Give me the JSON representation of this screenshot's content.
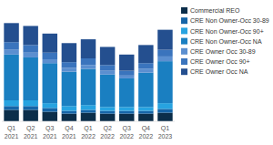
{
  "chart_data": {
    "type": "bar",
    "stacked": true,
    "legend": "right",
    "tick_labels": "x",
    "grid": false,
    "categories": [
      "Q1 2021",
      "Q2 2021",
      "Q3 2021",
      "Q4 2021",
      "Q1 2022",
      "Q2 2022",
      "Q3 2022",
      "Q4 2022",
      "Q1 2023"
    ],
    "ylim": [
      0,
      110
    ],
    "series": [
      {
        "name": "Commercial REO",
        "color": "#0b2e4a",
        "values": [
          12,
          12,
          10,
          8,
          9,
          8,
          8,
          8,
          9
        ]
      },
      {
        "name": "CRE Non Owner-Occ 30-89",
        "color": "#1565a8",
        "values": [
          4,
          4,
          4,
          3,
          3,
          3,
          3,
          3,
          4
        ]
      },
      {
        "name": "CRE Non Owner-Occ 90+",
        "color": "#27a3e0",
        "values": [
          6,
          6,
          5,
          5,
          5,
          4,
          4,
          4,
          6
        ]
      },
      {
        "name": "CRE Non Owner-Occ NA",
        "color": "#1a7fc1",
        "values": [
          48,
          45,
          42,
          36,
          38,
          34,
          30,
          36,
          44
        ]
      },
      {
        "name": "CRE Owner Occ 30-89",
        "color": "#5b8fd0",
        "values": [
          5,
          5,
          4,
          4,
          4,
          4,
          3,
          4,
          5
        ]
      },
      {
        "name": "CRE Owner Occ 90+",
        "color": "#3a74bd",
        "values": [
          8,
          8,
          7,
          6,
          7,
          6,
          5,
          6,
          7
        ]
      },
      {
        "name": "CRE Owner Occ NA",
        "color": "#244f8f",
        "values": [
          20,
          20,
          20,
          20,
          20,
          19,
          17,
          19,
          21
        ]
      }
    ]
  }
}
